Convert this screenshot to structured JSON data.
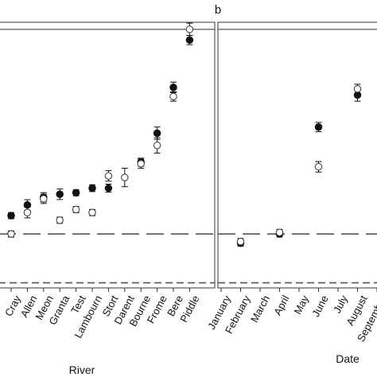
{
  "chart_data": [
    {
      "type": "scatter",
      "panel_label": "",
      "xlabel": "River",
      "ylabel": "",
      "ylim": [
        0,
        10
      ],
      "grid": false,
      "reference_lines": [
        {
          "style": "solid",
          "y": 9.3
        },
        {
          "style": "long-dash",
          "y": 2.6
        },
        {
          "style": "short-dash",
          "y": 1.0
        }
      ],
      "categories": [
        "Cray",
        "Allen",
        "Meon",
        "Granta",
        "Test",
        "Lambourn",
        "Stort",
        "Darent",
        "Bourne",
        "Frome",
        "Bere",
        "Piddle"
      ],
      "series": [
        {
          "marker": "filled-circle",
          "values": [
            3.2,
            3.55,
            3.8,
            3.9,
            3.95,
            4.1,
            4.1,
            null,
            4.95,
            5.9,
            7.4,
            8.95
          ],
          "errors": [
            0.05,
            0.12,
            0.1,
            0.12,
            0.05,
            0.06,
            0.08,
            null,
            0.08,
            0.15,
            0.12,
            0.1
          ]
        },
        {
          "marker": "open-circle",
          "values": [
            2.6,
            3.3,
            3.75,
            3.05,
            3.4,
            3.3,
            4.5,
            4.45,
            4.9,
            5.5,
            7.1,
            9.3
          ],
          "errors": [
            0.05,
            0.12,
            0.1,
            0.05,
            0.05,
            0.05,
            0.12,
            0.25,
            0.1,
            0.2,
            0.1,
            0.15
          ]
        }
      ]
    },
    {
      "type": "scatter",
      "panel_label": "b",
      "xlabel": "Date",
      "ylabel": "",
      "ylim": [
        0,
        10
      ],
      "grid": false,
      "reference_lines": [
        {
          "style": "solid",
          "y": 9.3
        },
        {
          "style": "long-dash",
          "y": 2.6
        },
        {
          "style": "short-dash",
          "y": 1.0
        }
      ],
      "categories": [
        "January",
        "February",
        "March",
        "April",
        "May",
        "June",
        "July",
        "August",
        "September"
      ],
      "series": [
        {
          "marker": "filled-circle",
          "values": [
            null,
            2.3,
            null,
            2.6,
            null,
            6.1,
            null,
            7.15,
            null
          ],
          "errors": [
            null,
            0.05,
            null,
            0.05,
            null,
            0.1,
            null,
            0.15,
            null
          ]
        },
        {
          "marker": "open-circle",
          "values": [
            null,
            2.35,
            null,
            2.65,
            null,
            4.8,
            null,
            7.35,
            null
          ],
          "errors": [
            null,
            0.05,
            null,
            0.05,
            null,
            0.12,
            null,
            0.1,
            null
          ]
        }
      ]
    }
  ]
}
